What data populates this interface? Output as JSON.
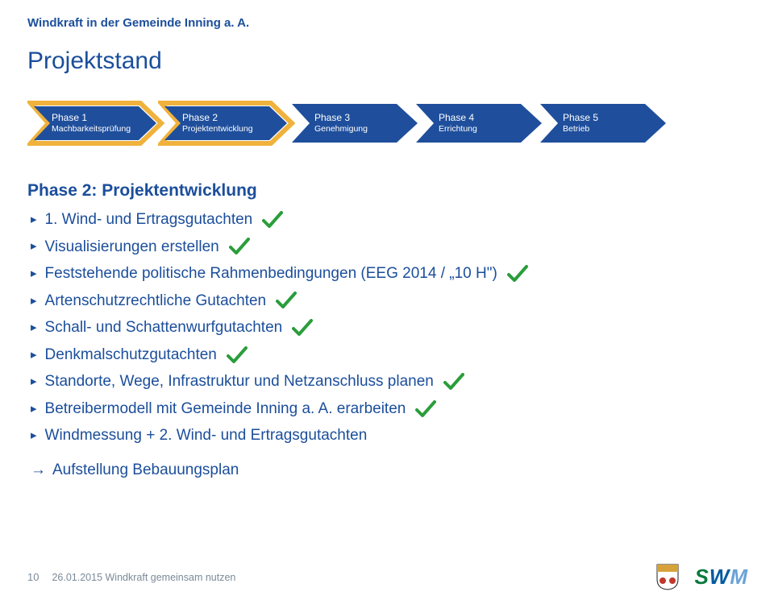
{
  "header": {
    "title": "Windkraft in der Gemeinde Inning a. A."
  },
  "main": {
    "title": "Projektstand"
  },
  "phases": {
    "arrow_fill": "#1f4f9c",
    "border_outer": "#f0b23c",
    "items": [
      {
        "t": "Phase 1",
        "s": "Machbarkeitsprüfung"
      },
      {
        "t": "Phase 2",
        "s": "Projektentwicklung"
      },
      {
        "t": "Phase 3",
        "s": "Genehmigung"
      },
      {
        "t": "Phase 4",
        "s": "Errichtung"
      },
      {
        "t": "Phase 5",
        "s": "Betrieb"
      }
    ]
  },
  "section": {
    "subtitle": "Phase 2: Projektentwicklung",
    "check_color": "#2a9d3a",
    "bullets": [
      {
        "text": "1. Wind- und Ertragsgutachten",
        "check": true
      },
      {
        "text": "Visualisierungen erstellen",
        "check": true
      },
      {
        "text": "Feststehende politische Rahmenbedingungen (EEG 2014 / „10 H\")",
        "check": true
      },
      {
        "text": "Artenschutzrechtliche Gutachten",
        "check": true
      },
      {
        "text": "Schall- und Schattenwurfgutachten",
        "check": true
      },
      {
        "text": "Denkmalschutzgutachten",
        "check": true
      },
      {
        "text": "Standorte, Wege, Infrastruktur und Netzanschluss planen",
        "check": true
      },
      {
        "text": "Betreibermodell mit Gemeinde Inning a. A. erarbeiten",
        "check": true
      },
      {
        "text": "Windmessung + 2. Wind- und Ertragsgutachten",
        "check": false
      }
    ],
    "arrow_line": "Aufstellung Bebauungsplan"
  },
  "footer": {
    "page": "10",
    "text": "26.01.2015 Windkraft gemeinsam nutzen",
    "swm": {
      "s": "S",
      "w": "W",
      "m": "M"
    }
  }
}
